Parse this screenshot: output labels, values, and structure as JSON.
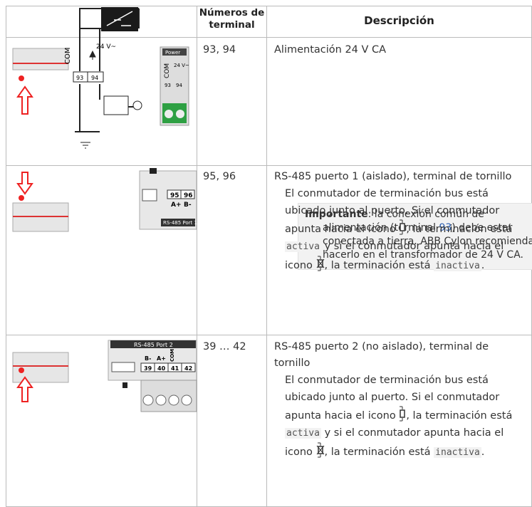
{
  "header": {
    "terminal": "Números de terminal",
    "description": "Descripción"
  },
  "rows": [
    {
      "terminals": "93, 94",
      "title": "Alimentación 24 V CA",
      "note": {
        "label": "Importante",
        "text_1": ": la conexión común de alimentación (terminal",
        "terminal": "93",
        "text_2": ") debe estar conectada a tierra. ABB Cylon recomienda hacerlo en el transformador de 24 V CA."
      },
      "image_labels": [
        "COM",
        "24 V~",
        "93",
        "94",
        "Power",
        "COM",
        "24 V~",
        "93",
        "94"
      ]
    },
    {
      "terminals": "95, 96",
      "title": "RS-485 puerto 1 (aislado), terminal de tornillo",
      "text_1": "El conmutador de terminación bus está ubicado junto al puerto. Si el conmutador apunta hacia el icono",
      "text_2": ", la terminación está",
      "code_1": "activa",
      "text_3": "y si el conmutador apunta hacia el icono",
      "text_4": ", la terminación está",
      "code_2": "inactiva",
      "text_5": ".",
      "image_labels": [
        "95",
        "96",
        "A+",
        "B-",
        "RS-485 Port 1"
      ]
    },
    {
      "terminals": "39 … 42",
      "title": "RS-485 puerto 2 (no aislado), terminal de tornillo",
      "text_1": "El conmutador de terminación bus está ubicado junto al puerto. Si el conmutador apunta hacia el icono",
      "text_2": ", la terminación está",
      "code_1": "activa",
      "text_3": "y si el conmutador apunta hacia el icono",
      "text_4": ", la terminación está",
      "code_2": "inactiva",
      "text_5": ".",
      "image_labels": [
        "RS-485 Port 2",
        "B-",
        "A+",
        "COM",
        "39",
        "40",
        "41",
        "42"
      ]
    }
  ]
}
